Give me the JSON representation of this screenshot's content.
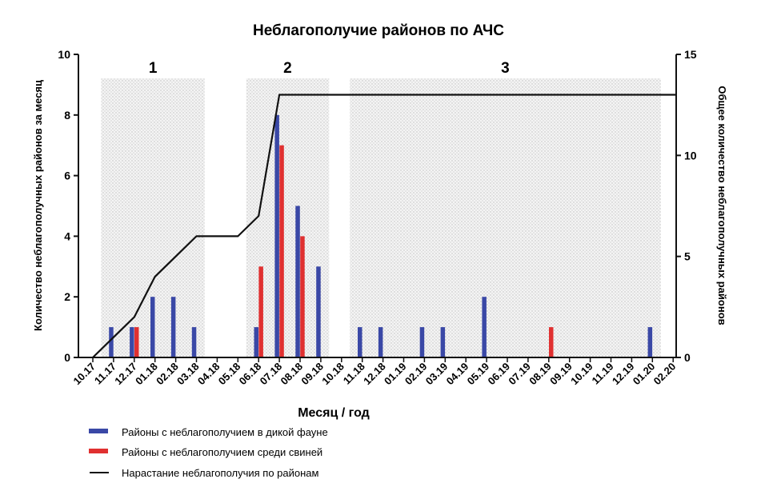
{
  "chart_data": {
    "type": "bar",
    "title": "Неблагополучие районов по АЧС",
    "xlabel": "Месяц / год",
    "ylabel": "Количество неблагополучных районов за месяц",
    "y2label": "Общее количество неблагополучных районов",
    "ylim": [
      0,
      10
    ],
    "y2lim": [
      0,
      15
    ],
    "yticks": [
      "0",
      "2",
      "4",
      "6",
      "8",
      "10"
    ],
    "y2ticks": [
      "0",
      "5",
      "10",
      "15"
    ],
    "categories": [
      "10.17",
      "11.17",
      "12.17",
      "01.18",
      "02.18",
      "03.18",
      "04.18",
      "05.18",
      "06.18",
      "07.18",
      "08.18",
      "09.18",
      "10.18",
      "11.18",
      "12.18",
      "01.19",
      "02.19",
      "03.19",
      "04.19",
      "05.19",
      "06.19",
      "07.19",
      "08.19",
      "09.19",
      "10.19",
      "11.19",
      "12.19",
      "01.20",
      "02.20"
    ],
    "periods": [
      {
        "label": "1",
        "from": "11.17",
        "to": "03.18"
      },
      {
        "label": "2",
        "from": "06.18",
        "to": "09.18"
      },
      {
        "label": "3",
        "from": "11.18",
        "to": "01.20"
      }
    ],
    "series": [
      {
        "name": "Районы с неблагополучием в дикой фауне",
        "type": "bar",
        "axis": "left",
        "color": "#3a48a6",
        "values": [
          0,
          1,
          1,
          2,
          2,
          1,
          0,
          0,
          1,
          8,
          5,
          3,
          0,
          1,
          1,
          0,
          1,
          1,
          0,
          2,
          0,
          0,
          0,
          0,
          0,
          0,
          0,
          1,
          0
        ]
      },
      {
        "name": "Районы с неблагополучием среди свиней",
        "type": "bar",
        "axis": "left",
        "color": "#e03030",
        "values": [
          0,
          0,
          1,
          0,
          0,
          0,
          0,
          0,
          3,
          7,
          4,
          0,
          0,
          0,
          0,
          0,
          0,
          0,
          0,
          0,
          0,
          0,
          1,
          0,
          0,
          0,
          0,
          0,
          0
        ]
      },
      {
        "name": "Нарастание неблагополучия по районам",
        "type": "line",
        "axis": "right",
        "color": "#111111",
        "values": [
          0,
          1,
          2,
          4,
          5,
          6,
          6,
          6,
          7,
          13,
          13,
          13,
          13,
          13,
          13,
          13,
          13,
          13,
          13,
          13,
          13,
          13,
          13,
          13,
          13,
          13,
          13,
          13,
          13
        ]
      }
    ],
    "legend_position": "bottom-left",
    "grid": false
  }
}
